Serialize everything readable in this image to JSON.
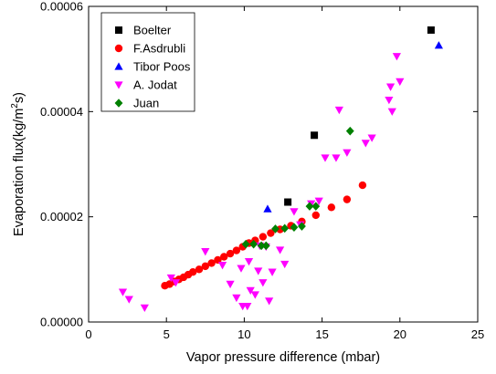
{
  "chart_data": {
    "type": "scatter",
    "title": "",
    "xlabel": "Vapor pressure difference (mbar)",
    "ylabel": "Evaporation flux(kg/m",
    "ylabel_sup": "2",
    "ylabel_suffix": "s)",
    "xlim": [
      0,
      25
    ],
    "ylim": [
      0,
      6e-05
    ],
    "xticks": [
      0,
      5,
      10,
      15,
      20,
      25
    ],
    "xtick_labels": [
      "0",
      "5",
      "10",
      "15",
      "20",
      "25"
    ],
    "yticks": [
      0,
      2e-05,
      4e-05,
      6e-05
    ],
    "ytick_labels": [
      "0.00000",
      "0.00002",
      "0.00004",
      "0.00006"
    ],
    "grid": false,
    "legend_position": "top-left",
    "series": [
      {
        "name": "Boelter",
        "marker": "square",
        "color": "#000000",
        "points": [
          [
            12.8,
            2.28e-05
          ],
          [
            14.5,
            3.55e-05
          ],
          [
            22.0,
            5.55e-05
          ]
        ]
      },
      {
        "name": "F.Asdrubli",
        "marker": "circle",
        "color": "#ff0000",
        "points": [
          [
            4.9,
            6.9e-06
          ],
          [
            5.2,
            7.2e-06
          ],
          [
            5.5,
            7.7e-06
          ],
          [
            5.8,
            8.1e-06
          ],
          [
            6.1,
            8.5e-06
          ],
          [
            6.4,
            9e-06
          ],
          [
            6.7,
            9.5e-06
          ],
          [
            7.1,
            1e-05
          ],
          [
            7.5,
            1.06e-05
          ],
          [
            7.9,
            1.12e-05
          ],
          [
            8.3,
            1.18e-05
          ],
          [
            8.7,
            1.24e-05
          ],
          [
            9.1,
            1.3e-05
          ],
          [
            9.5,
            1.36e-05
          ],
          [
            9.9,
            1.43e-05
          ],
          [
            10.3,
            1.5e-05
          ],
          [
            10.7,
            1.55e-05
          ],
          [
            11.2,
            1.62e-05
          ],
          [
            11.7,
            1.69e-05
          ],
          [
            12.3,
            1.76e-05
          ],
          [
            13.0,
            1.83e-05
          ],
          [
            13.7,
            1.91e-05
          ],
          [
            14.6,
            2.03e-05
          ],
          [
            15.6,
            2.18e-05
          ],
          [
            16.6,
            2.33e-05
          ],
          [
            17.6,
            2.6e-05
          ]
        ]
      },
      {
        "name": "Tibor Poos",
        "marker": "triangle-up",
        "color": "#0000ff",
        "points": [
          [
            11.5,
            2.15e-05
          ],
          [
            22.5,
            5.26e-05
          ]
        ]
      },
      {
        "name": "A. Jodat",
        "marker": "triangle-down",
        "color": "#ff00ff",
        "points": [
          [
            2.2,
            5.7e-06
          ],
          [
            2.6,
            4.3e-06
          ],
          [
            3.6,
            2.7e-06
          ],
          [
            5.3,
            8.4e-06
          ],
          [
            5.6,
            7.5e-06
          ],
          [
            7.5,
            1.34e-05
          ],
          [
            8.6,
            1.08e-05
          ],
          [
            9.1,
            7.2e-06
          ],
          [
            9.5,
            4.6e-06
          ],
          [
            9.8,
            1.02e-05
          ],
          [
            9.9,
            3e-06
          ],
          [
            10.2,
            3e-06
          ],
          [
            10.3,
            1.15e-05
          ],
          [
            10.4,
            6e-06
          ],
          [
            10.7,
            5.2e-06
          ],
          [
            10.9,
            9.7e-06
          ],
          [
            11.0,
            1.45e-05
          ],
          [
            11.2,
            7.5e-06
          ],
          [
            11.4,
            1.43e-05
          ],
          [
            11.6,
            4e-06
          ],
          [
            11.8,
            9.5e-06
          ],
          [
            12.3,
            1.37e-05
          ],
          [
            12.6,
            1.1e-05
          ],
          [
            13.2,
            2.1e-05
          ],
          [
            13.6,
            1.85e-05
          ],
          [
            14.3,
            2.25e-05
          ],
          [
            14.8,
            2.3e-05
          ],
          [
            15.2,
            3.12e-05
          ],
          [
            15.9,
            3.12e-05
          ],
          [
            16.1,
            4.03e-05
          ],
          [
            16.6,
            3.22e-05
          ],
          [
            17.8,
            3.4e-05
          ],
          [
            18.2,
            3.5e-05
          ],
          [
            19.3,
            4.22e-05
          ],
          [
            19.4,
            4.47e-05
          ],
          [
            19.5,
            4e-05
          ],
          [
            19.8,
            5.05e-05
          ],
          [
            20.0,
            4.57e-05
          ]
        ]
      },
      {
        "name": "Juan",
        "marker": "diamond",
        "color": "#008000",
        "points": [
          [
            10.1,
            1.48e-05
          ],
          [
            10.6,
            1.48e-05
          ],
          [
            11.1,
            1.45e-05
          ],
          [
            11.4,
            1.45e-05
          ],
          [
            12.0,
            1.77e-05
          ],
          [
            12.6,
            1.78e-05
          ],
          [
            13.2,
            1.8e-05
          ],
          [
            13.7,
            1.82e-05
          ],
          [
            14.2,
            2.2e-05
          ],
          [
            14.6,
            2.2e-05
          ],
          [
            16.8,
            3.63e-05
          ]
        ]
      }
    ]
  }
}
